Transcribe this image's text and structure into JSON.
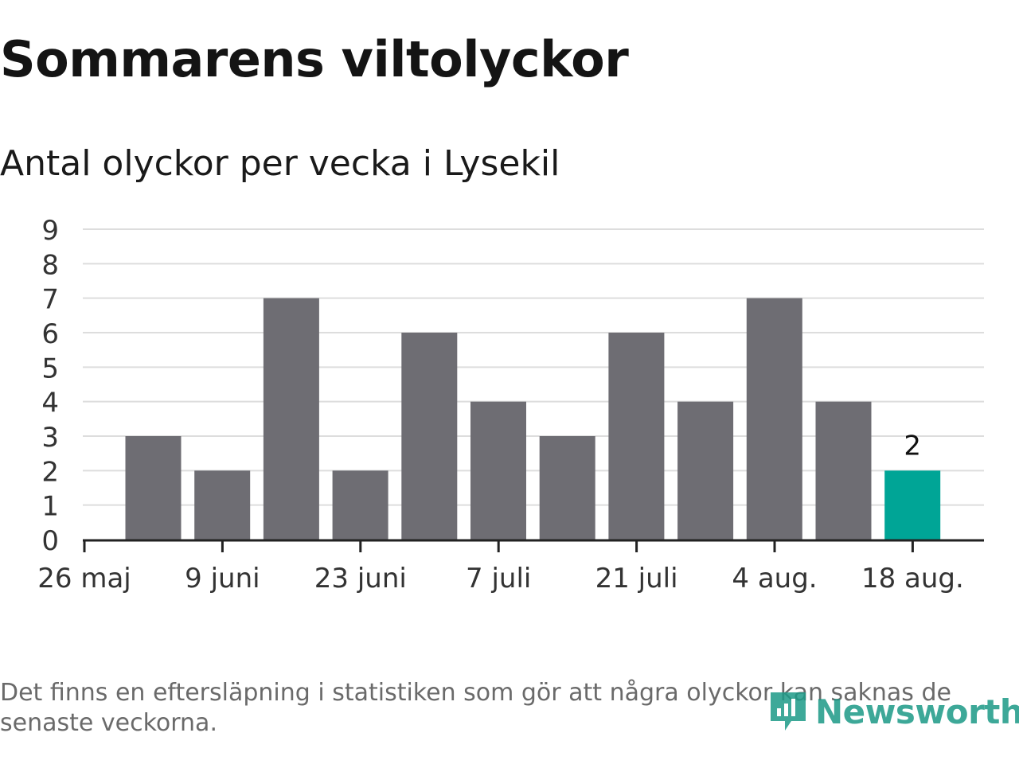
{
  "title": "Sommarens viltolyckor",
  "subtitle": "Antal olyckor per vecka i Lysekil",
  "footnote": "Det finns en eftersläpning i statistiken som gör att några olyckor kan saknas de senaste veckorna.",
  "logo": {
    "text": "Newsworthy",
    "icon": "newsworthy-logo-icon",
    "color": "#1c9a87"
  },
  "colors": {
    "bar": "#6e6d73",
    "highlight": "#00a596",
    "grid": "#dddddd",
    "axis": "#222222",
    "text": "#333333"
  },
  "chart_data": {
    "type": "bar",
    "title": "Antal olyckor per vecka i Lysekil",
    "xlabel": "",
    "ylabel": "",
    "ylim": [
      0,
      9
    ],
    "yticks": [
      0,
      1,
      2,
      3,
      4,
      5,
      6,
      7,
      8,
      9
    ],
    "xtick_labels": [
      "26 maj",
      "9 juni",
      "23 juni",
      "7 juli",
      "21 juli",
      "4 aug.",
      "18 aug."
    ],
    "categories": [
      "2 juni",
      "9 juni",
      "16 juni",
      "23 juni",
      "30 juni",
      "7 juli",
      "14 juli",
      "21 juli",
      "28 juli",
      "4 aug.",
      "11 aug.",
      "18 aug."
    ],
    "values": [
      3,
      2,
      7,
      2,
      6,
      4,
      3,
      6,
      4,
      7,
      4,
      2
    ],
    "highlight_index": 11,
    "highlight_label": "2",
    "grid": true,
    "legend": "none"
  }
}
